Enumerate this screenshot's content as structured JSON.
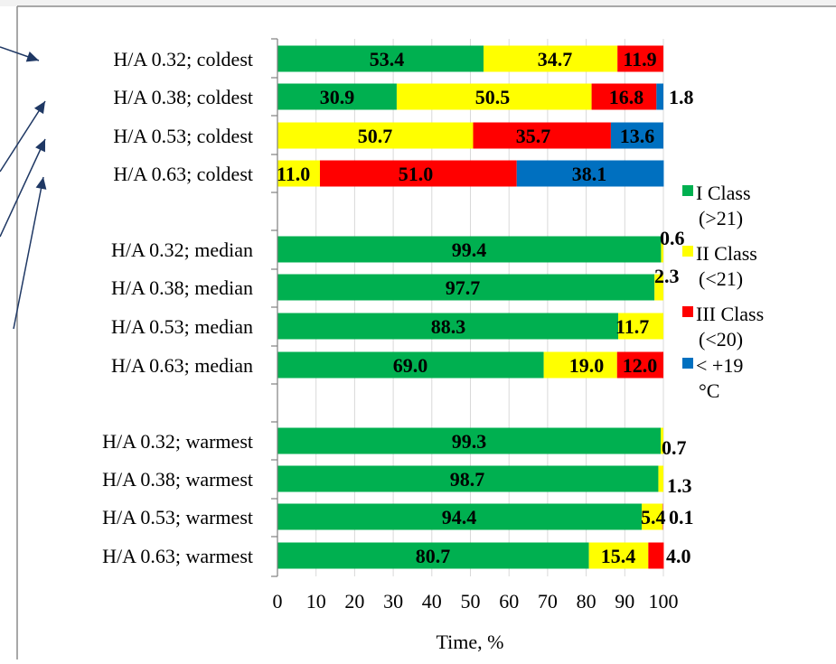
{
  "chart_data": {
    "type": "bar",
    "orientation": "horizontal",
    "stacked": true,
    "xlabel": "Time, %",
    "xlim": [
      0,
      100
    ],
    "xticks": [
      0,
      10,
      20,
      30,
      40,
      50,
      60,
      70,
      80,
      90,
      100
    ],
    "categories": [
      "H/A 0.32; coldest",
      "H/A 0.38; coldest",
      "H/A 0.53; coldest",
      "H/A 0.63; coldest",
      "H/A 0.32; median",
      "H/A 0.38; median",
      "H/A 0.53; median",
      "H/A 0.63; median",
      "H/A 0.32; warmest",
      "H/A 0.38; warmest",
      "H/A 0.53; warmest",
      "H/A 0.63; warmest"
    ],
    "series": [
      {
        "name": "I Class (>21)",
        "color": "#00B050",
        "values": [
          53.4,
          30.9,
          0,
          0,
          99.4,
          97.7,
          88.3,
          69.0,
          99.3,
          98.7,
          94.4,
          80.7
        ],
        "labels": [
          "53.4",
          "30.9",
          "",
          "",
          "99.4",
          "97.7",
          "88.3",
          "69.0",
          "99.3",
          "98.7",
          "94.4",
          "80.7"
        ]
      },
      {
        "name": "II Class (<21)",
        "color": "#FFFF00",
        "values": [
          34.7,
          50.5,
          50.7,
          11.0,
          0.6,
          2.3,
          11.7,
          19.0,
          0.7,
          1.3,
          5.4,
          15.4
        ],
        "labels": [
          "34.7",
          "50.5",
          "50.7",
          "11.0",
          "0.6",
          "2.3",
          "11.7",
          "19.0",
          "0.7",
          "1.3",
          "5.4",
          "15.4"
        ]
      },
      {
        "name": "III Class (<20)",
        "color": "#FF0000",
        "values": [
          11.9,
          16.8,
          35.7,
          51.0,
          0,
          0,
          0,
          12.0,
          0,
          0,
          0.1,
          4.0
        ],
        "labels": [
          "11.9",
          "16.8",
          "35.7",
          "51.0",
          "",
          "",
          "",
          "12.0",
          "",
          "",
          "0.1",
          "4.0"
        ]
      },
      {
        "name": "< +19 °C",
        "color": "#0070C0",
        "values": [
          0,
          1.8,
          13.6,
          38.1,
          0,
          0,
          0,
          0,
          0,
          0,
          0,
          0
        ],
        "labels": [
          "",
          "1.8",
          "13.6",
          "38.1",
          "",
          "",
          "",
          "",
          "",
          "",
          "",
          ""
        ]
      }
    ],
    "legend": {
      "placement": "right",
      "entries": [
        {
          "color": "#00B050",
          "lines": [
            "I Class",
            "(>21)"
          ]
        },
        {
          "color": "#FFFF00",
          "lines": [
            "II Class",
            "(<21)"
          ]
        },
        {
          "color": "#FF0000",
          "lines": [
            "III Class",
            "(<20)"
          ]
        },
        {
          "color": "#0070C0",
          "lines": [
            "< +19",
            "°C"
          ]
        }
      ]
    },
    "grid": true
  }
}
